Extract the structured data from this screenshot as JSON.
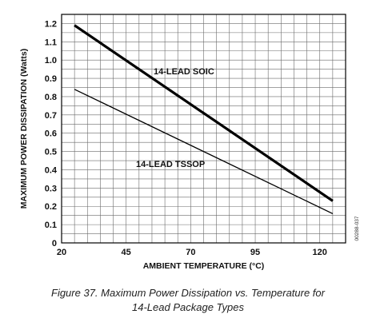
{
  "chart_data": {
    "type": "line",
    "xlabel": "AMBIENT TEMPERATURE (°C)",
    "ylabel": "MAXIMUM POWER DISSIPATION (Watts)",
    "xlim": [
      20,
      130
    ],
    "ylim": [
      0,
      1.25
    ],
    "x_ticks": [
      20,
      45,
      70,
      95,
      120
    ],
    "y_ticks": [
      0,
      0.1,
      0.2,
      0.3,
      0.4,
      0.5,
      0.6,
      0.7,
      0.8,
      0.9,
      1.0,
      1.1,
      1.2
    ],
    "y_tick_labels": [
      "0",
      "0.1",
      "0.2",
      "0.3",
      "0.4",
      "0.5",
      "0.6",
      "0.7",
      "0.8",
      "0.9",
      "1.0",
      "1.1",
      "1.2"
    ],
    "grid": true,
    "series": [
      {
        "name": "14-LEAD SOIC",
        "x": [
          25,
          125
        ],
        "y": [
          1.19,
          0.23
        ],
        "color": "#000000"
      },
      {
        "name": "14-LEAD TSSOP",
        "x": [
          25,
          125
        ],
        "y": [
          0.84,
          0.16
        ],
        "color": "#000000"
      }
    ],
    "figure_id": "00288-037"
  },
  "caption": {
    "line1": "Figure 37. Maximum Power Dissipation vs. Temperature for",
    "line2": "14-Lead Package Types"
  }
}
